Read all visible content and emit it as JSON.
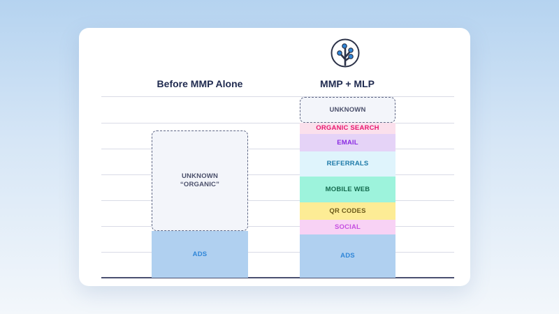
{
  "left_column": {
    "title": "Before MMP Alone",
    "segments": [
      {
        "label": "UNKNOWN\n“ORGANIC”",
        "bg": "#f3f5fa",
        "color": "#4a4f6a"
      },
      {
        "label": "ADS",
        "bg": "#b0d0f0",
        "color": "#2f86d8"
      }
    ]
  },
  "right_column": {
    "title": "MMP + MLP",
    "logo": "tree-logo-icon",
    "segments": [
      {
        "label": "UNKNOWN",
        "bg": "#f3f5fa",
        "color": "#4a4f6a"
      },
      {
        "label": "ORGANIC SEARCH",
        "bg": "#fbe0ec",
        "color": "#e8176f"
      },
      {
        "label": "EMAIL",
        "bg": "#e5d3f7",
        "color": "#8a2be2"
      },
      {
        "label": "REFERRALS",
        "bg": "#dff4fc",
        "color": "#1d7aa8"
      },
      {
        "label": "MOBILE WEB",
        "bg": "#9df3dc",
        "color": "#146b4e"
      },
      {
        "label": "QR CODES",
        "bg": "#fdec95",
        "color": "#6b5a1a"
      },
      {
        "label": "SOCIAL",
        "bg": "#f8d2f5",
        "color": "#c54fe0"
      },
      {
        "label": "ADS",
        "bg": "#b0d0f0",
        "color": "#2f86d8"
      }
    ]
  }
}
